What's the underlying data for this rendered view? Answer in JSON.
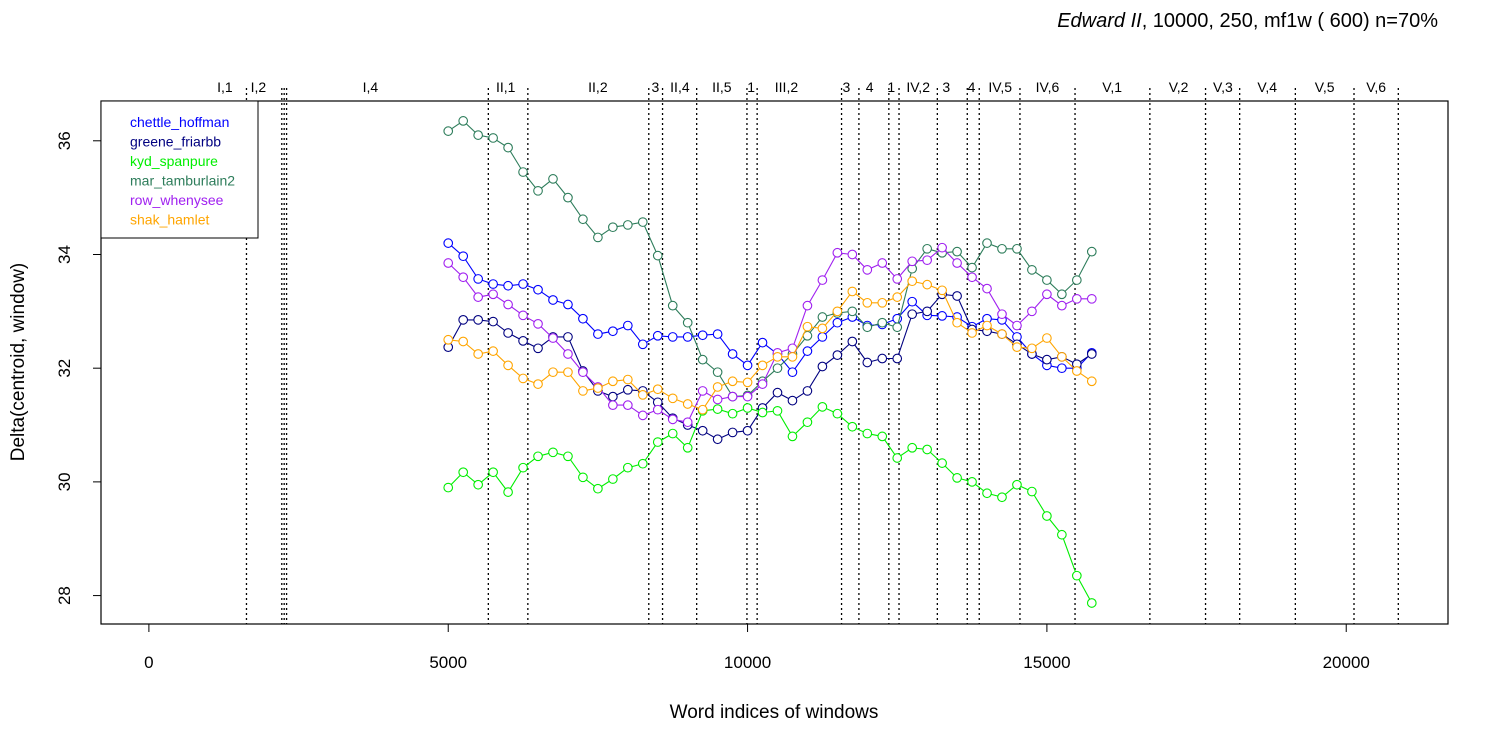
{
  "chart_data": {
    "type": "line",
    "title_italic": "Edward II",
    "title_rest": ", 10000, 250, mf1w ( 600)   n=70%",
    "xlabel": "Word indices of windows",
    "ylabel": "Delta(centroid, window)",
    "xlim": [
      -800,
      21700
    ],
    "ylim": [
      27.5,
      36.7
    ],
    "xticks": [
      0,
      5000,
      10000,
      15000,
      20000
    ],
    "yticks": [
      28,
      30,
      32,
      34,
      36
    ],
    "grid": false,
    "legend_position": "top-left",
    "x": [
      5000,
      5250,
      5500,
      5750,
      6000,
      6250,
      6500,
      6750,
      7000,
      7250,
      7500,
      7750,
      8000,
      8250,
      8500,
      8750,
      9000,
      9250,
      9500,
      9750,
      10000,
      10250,
      10500,
      10750,
      11000,
      11250,
      11500,
      11750,
      12000,
      12250,
      12500,
      12750,
      13000,
      13250,
      13500,
      13750,
      14000,
      14250,
      14500,
      14750,
      15000,
      15250,
      15500,
      15750
    ],
    "series": [
      {
        "name": "chettle_hoffman",
        "color": "#0000FF",
        "values": [
          34.2,
          33.97,
          33.57,
          33.48,
          33.45,
          33.48,
          33.38,
          33.2,
          33.12,
          32.87,
          32.6,
          32.65,
          32.75,
          32.42,
          32.57,
          32.55,
          32.55,
          32.58,
          32.6,
          32.25,
          32.05,
          32.45,
          32.25,
          31.93,
          32.3,
          32.55,
          32.8,
          32.9,
          32.75,
          32.77,
          32.87,
          33.17,
          32.93,
          32.92,
          32.9,
          32.73,
          32.87,
          32.85,
          32.55,
          32.25,
          32.05,
          32.0,
          32.0,
          32.27
        ]
      },
      {
        "name": "greene_friarbb",
        "color": "#000080",
        "values": [
          32.37,
          32.85,
          32.85,
          32.82,
          32.62,
          32.48,
          32.35,
          32.55,
          32.55,
          31.95,
          31.6,
          31.5,
          31.62,
          31.6,
          31.4,
          31.12,
          31.0,
          30.9,
          30.75,
          30.87,
          30.9,
          31.3,
          31.57,
          31.43,
          31.6,
          32.03,
          32.23,
          32.47,
          32.1,
          32.17,
          32.17,
          32.95,
          33.0,
          33.3,
          33.27,
          32.68,
          32.65,
          32.6,
          32.42,
          32.25,
          32.15,
          32.2,
          32.07,
          32.25
        ]
      },
      {
        "name": "kyd_spanpure",
        "color": "#00EE00",
        "values": [
          29.9,
          30.17,
          29.95,
          30.17,
          29.82,
          30.25,
          30.45,
          30.52,
          30.45,
          30.08,
          29.88,
          30.05,
          30.25,
          30.32,
          30.7,
          30.85,
          30.6,
          31.25,
          31.28,
          31.2,
          31.3,
          31.22,
          31.25,
          30.8,
          31.05,
          31.32,
          31.2,
          30.97,
          30.85,
          30.8,
          30.42,
          30.6,
          30.57,
          30.33,
          30.07,
          30.0,
          29.8,
          29.73,
          29.95,
          29.83,
          29.4,
          29.07,
          28.35,
          27.87
        ]
      },
      {
        "name": "mar_tamburlain2",
        "color": "#2E7D5B",
        "values": [
          36.17,
          36.35,
          36.1,
          36.05,
          35.88,
          35.45,
          35.12,
          35.33,
          35.0,
          34.62,
          34.3,
          34.48,
          34.52,
          34.57,
          33.98,
          33.1,
          32.8,
          32.15,
          31.93,
          31.5,
          31.52,
          31.77,
          32.0,
          32.25,
          32.57,
          32.9,
          32.97,
          33.0,
          32.72,
          32.8,
          32.72,
          33.75,
          34.1,
          34.03,
          34.05,
          33.77,
          34.2,
          34.1,
          34.1,
          33.73,
          33.55,
          33.3,
          33.55,
          34.05
        ]
      },
      {
        "name": "row_whenysee",
        "color": "#A020F0",
        "values": [
          33.85,
          33.6,
          33.25,
          33.3,
          33.12,
          32.93,
          32.78,
          32.53,
          32.25,
          31.93,
          31.67,
          31.35,
          31.35,
          31.17,
          31.27,
          31.1,
          31.05,
          31.6,
          31.45,
          31.5,
          31.5,
          31.72,
          32.27,
          32.35,
          33.1,
          33.55,
          34.03,
          34.0,
          33.73,
          33.85,
          33.57,
          33.88,
          33.9,
          34.12,
          33.85,
          33.6,
          33.4,
          32.95,
          32.75,
          33.0,
          33.3,
          33.1,
          33.22,
          33.22
        ]
      },
      {
        "name": "shak_hamlet",
        "color": "#FFA500",
        "values": [
          32.5,
          32.47,
          32.25,
          32.3,
          32.05,
          31.82,
          31.72,
          31.93,
          31.93,
          31.6,
          31.65,
          31.77,
          31.8,
          31.53,
          31.63,
          31.47,
          31.37,
          31.27,
          31.67,
          31.77,
          31.75,
          32.05,
          32.2,
          32.2,
          32.73,
          32.7,
          33.0,
          33.35,
          33.15,
          33.15,
          33.25,
          33.53,
          33.47,
          33.37,
          32.8,
          32.62,
          32.75,
          32.6,
          32.37,
          32.35,
          32.53,
          32.2,
          31.95,
          31.77
        ]
      }
    ],
    "scene_breaks": [
      1630,
      2220,
      2260,
      2300,
      5670,
      6330,
      8350,
      8580,
      9150,
      9990,
      10160,
      11570,
      11860,
      12360,
      12530,
      13170,
      13670,
      13870,
      14550,
      15470,
      16720,
      17650,
      18220,
      19150,
      20130,
      20870
    ],
    "scene_labels": [
      {
        "text": "I,1",
        "x": 1270
      },
      {
        "text": "I,2",
        "x": 1830
      },
      {
        "text": "I,4",
        "x": 3700
      },
      {
        "text": "II,1",
        "x": 5960
      },
      {
        "text": "II,2",
        "x": 7500
      },
      {
        "text": "3",
        "x": 8460
      },
      {
        "text": "II,4",
        "x": 8870
      },
      {
        "text": "II,5",
        "x": 9570
      },
      {
        "text": "1",
        "x": 10060
      },
      {
        "text": "III,2",
        "x": 10650
      },
      {
        "text": "3",
        "x": 11650
      },
      {
        "text": "4",
        "x": 12040
      },
      {
        "text": "1",
        "x": 12400
      },
      {
        "text": "IV,2",
        "x": 12850
      },
      {
        "text": "3",
        "x": 13320
      },
      {
        "text": "4",
        "x": 13740
      },
      {
        "text": "IV,5",
        "x": 14220
      },
      {
        "text": "IV,6",
        "x": 15010
      },
      {
        "text": "V,1",
        "x": 16090
      },
      {
        "text": "V,2",
        "x": 17200
      },
      {
        "text": "V,3",
        "x": 17940
      },
      {
        "text": "V,4",
        "x": 18680
      },
      {
        "text": "V,5",
        "x": 19640
      },
      {
        "text": "V,6",
        "x": 20500
      }
    ]
  }
}
